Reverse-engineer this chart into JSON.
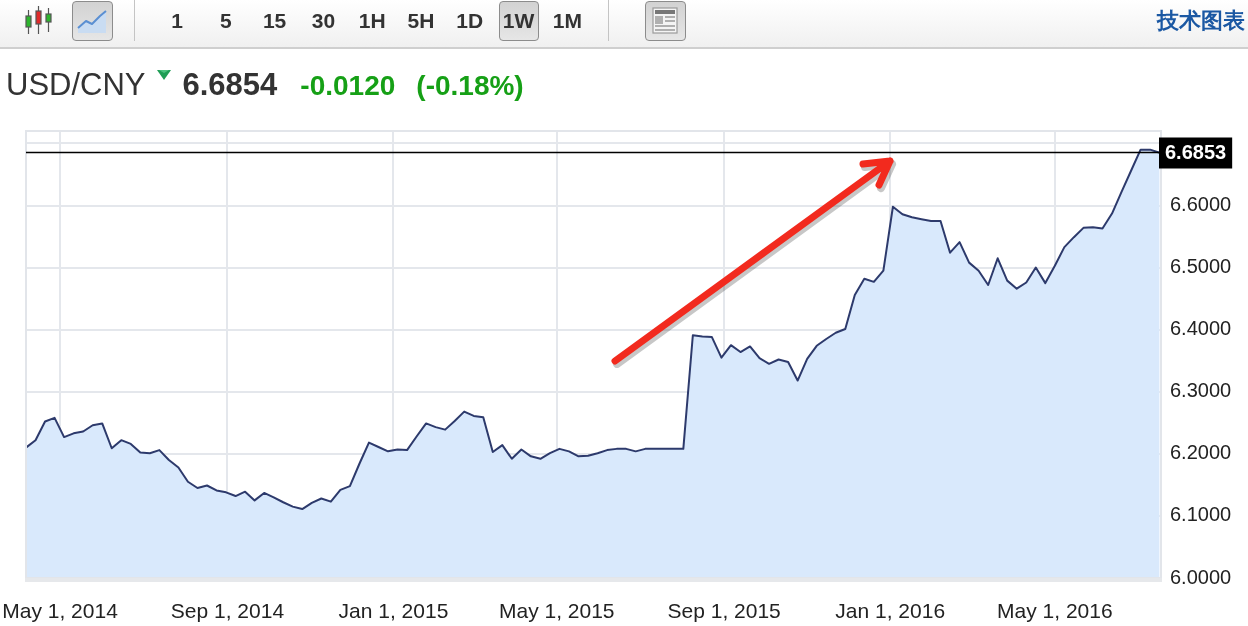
{
  "chart_data": {
    "type": "area",
    "title": "USD/CNY",
    "subtitle": "6.6854",
    "annotations": [
      "1",
      "5",
      "15",
      "30",
      "1H",
      "5H",
      "1D",
      "1W",
      "1M",
      "技术图表",
      "-0.0120",
      "(-0.18%)"
    ],
    "x": [
      "2014-04-06",
      "2014-04-13",
      "2014-04-20",
      "2014-04-27",
      "2014-05-04",
      "2014-05-11",
      "2014-05-18",
      "2014-05-25",
      "2014-06-01",
      "2014-06-08",
      "2014-06-15",
      "2014-06-22",
      "2014-06-29",
      "2014-07-06",
      "2014-07-13",
      "2014-07-20",
      "2014-07-27",
      "2014-08-03",
      "2014-08-10",
      "2014-08-17",
      "2014-08-24",
      "2014-08-31",
      "2014-09-07",
      "2014-09-14",
      "2014-09-21",
      "2014-09-28",
      "2014-10-05",
      "2014-10-12",
      "2014-10-19",
      "2014-10-26",
      "2014-11-02",
      "2014-11-09",
      "2014-11-16",
      "2014-11-23",
      "2014-11-30",
      "2014-12-07",
      "2014-12-14",
      "2014-12-21",
      "2014-12-28",
      "2015-01-04",
      "2015-01-11",
      "2015-01-18",
      "2015-01-25",
      "2015-02-01",
      "2015-02-08",
      "2015-02-15",
      "2015-02-22",
      "2015-03-01",
      "2015-03-08",
      "2015-03-15",
      "2015-03-22",
      "2015-03-29",
      "2015-04-05",
      "2015-04-12",
      "2015-04-19",
      "2015-04-26",
      "2015-05-03",
      "2015-05-10",
      "2015-05-17",
      "2015-05-24",
      "2015-05-31",
      "2015-06-07",
      "2015-06-14",
      "2015-06-21",
      "2015-06-28",
      "2015-07-05",
      "2015-07-12",
      "2015-07-19",
      "2015-07-26",
      "2015-08-02",
      "2015-08-09",
      "2015-08-16",
      "2015-08-23",
      "2015-08-30",
      "2015-09-06",
      "2015-09-13",
      "2015-09-20",
      "2015-09-27",
      "2015-10-04",
      "2015-10-11",
      "2015-10-18",
      "2015-10-25",
      "2015-11-01",
      "2015-11-08",
      "2015-11-15",
      "2015-11-22",
      "2015-11-29",
      "2015-12-06",
      "2015-12-13",
      "2015-12-20",
      "2015-12-27",
      "2016-01-03",
      "2016-01-10",
      "2016-01-17",
      "2016-01-24",
      "2016-01-31",
      "2016-02-07",
      "2016-02-14",
      "2016-02-21",
      "2016-02-28",
      "2016-03-06",
      "2016-03-13",
      "2016-03-20",
      "2016-03-27",
      "2016-04-03",
      "2016-04-10",
      "2016-04-17",
      "2016-04-24",
      "2016-05-01",
      "2016-05-08",
      "2016-05-15",
      "2016-05-22",
      "2016-05-29",
      "2016-06-05",
      "2016-06-12",
      "2016-06-19",
      "2016-06-26",
      "2016-07-03",
      "2016-07-10",
      "2016-07-17"
    ],
    "values": [
      6.21,
      6.222,
      6.252,
      6.258,
      6.227,
      6.233,
      6.236,
      6.246,
      6.249,
      6.209,
      6.222,
      6.216,
      6.202,
      6.201,
      6.206,
      6.19,
      6.178,
      6.155,
      6.145,
      6.149,
      6.141,
      6.138,
      6.132,
      6.139,
      6.125,
      6.137,
      6.13,
      6.122,
      6.115,
      6.111,
      6.121,
      6.128,
      6.123,
      6.142,
      6.148,
      6.184,
      6.218,
      6.211,
      6.204,
      6.207,
      6.206,
      6.228,
      6.249,
      6.243,
      6.239,
      6.253,
      6.268,
      6.261,
      6.259,
      6.203,
      6.214,
      6.192,
      6.207,
      6.196,
      6.192,
      6.201,
      6.208,
      6.204,
      6.196,
      6.197,
      6.201,
      6.206,
      6.208,
      6.208,
      6.204,
      6.208,
      6.208,
      6.208,
      6.208,
      6.208,
      6.391,
      6.389,
      6.388,
      6.355,
      6.375,
      6.364,
      6.373,
      6.354,
      6.345,
      6.352,
      6.348,
      6.318,
      6.353,
      6.374,
      6.385,
      6.395,
      6.401,
      6.456,
      6.482,
      6.477,
      6.495,
      6.598,
      6.586,
      6.581,
      6.578,
      6.575,
      6.575,
      6.524,
      6.541,
      6.508,
      6.495,
      6.472,
      6.515,
      6.479,
      6.466,
      6.476,
      6.5,
      6.475,
      6.503,
      6.533,
      6.549,
      6.564,
      6.565,
      6.563,
      6.587,
      6.622,
      6.656,
      6.69,
      6.69,
      6.685
    ],
    "color": "#d9e9fc",
    "xlim": [
      "2014-04-06",
      "2016-07-18"
    ],
    "xticks": [
      {
        "value": "2014-05-01",
        "label": "May 1, 2014"
      },
      {
        "value": "2014-09-01",
        "label": "Sep 1, 2014"
      },
      {
        "value": "2015-01-01",
        "label": "Jan 1, 2015"
      },
      {
        "value": "2015-05-01",
        "label": "May 1, 2015"
      },
      {
        "value": "2015-09-01",
        "label": "Sep 1, 2015"
      },
      {
        "value": "2016-01-01",
        "label": "Jan 1, 2016"
      },
      {
        "value": "2016-05-01",
        "label": "May 1, 2016"
      }
    ],
    "ylim": [
      6.0,
      6.72
    ],
    "yticks": [
      {
        "value": 6.0,
        "label": "6.0000"
      },
      {
        "value": 6.1,
        "label": "6.1000"
      },
      {
        "value": 6.2,
        "label": "6.2000"
      },
      {
        "value": 6.3,
        "label": "6.3000"
      },
      {
        "value": 6.4,
        "label": "6.4000"
      },
      {
        "value": 6.5,
        "label": "6.5000"
      },
      {
        "value": 6.6,
        "label": "6.6000"
      },
      {
        "value": 6.7,
        "label": null
      }
    ],
    "ref_lines": [
      {
        "axis": "y",
        "value": 6.6853,
        "label": "6.6853",
        "color": "#000000"
      }
    ],
    "grid": true
  }
}
